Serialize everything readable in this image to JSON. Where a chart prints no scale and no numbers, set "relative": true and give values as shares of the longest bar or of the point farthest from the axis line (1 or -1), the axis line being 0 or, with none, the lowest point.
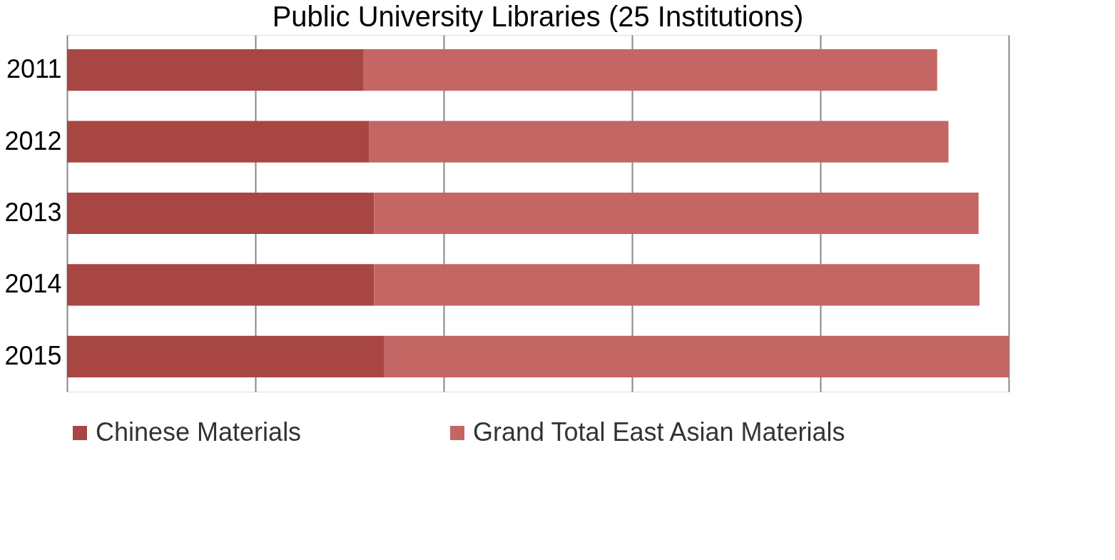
{
  "chart_data": {
    "type": "bar",
    "title": "Public University Libraries (25 Institutions)",
    "orientation": "horizontal",
    "stacked": true,
    "relative": true,
    "grid": "x",
    "legend": "bottom",
    "categories": [
      "2011",
      "2012",
      "2013",
      "2014",
      "2015"
    ],
    "series": [
      {
        "name": "Chinese Materials",
        "color": "#a84644",
        "values": [
          0.315,
          0.321,
          0.326,
          0.326,
          0.337
        ]
      },
      {
        "name": "Grand Total East Asian Materials",
        "color": "#c46664",
        "values": [
          0.609,
          0.615,
          0.642,
          0.643,
          0.663
        ]
      }
    ]
  }
}
